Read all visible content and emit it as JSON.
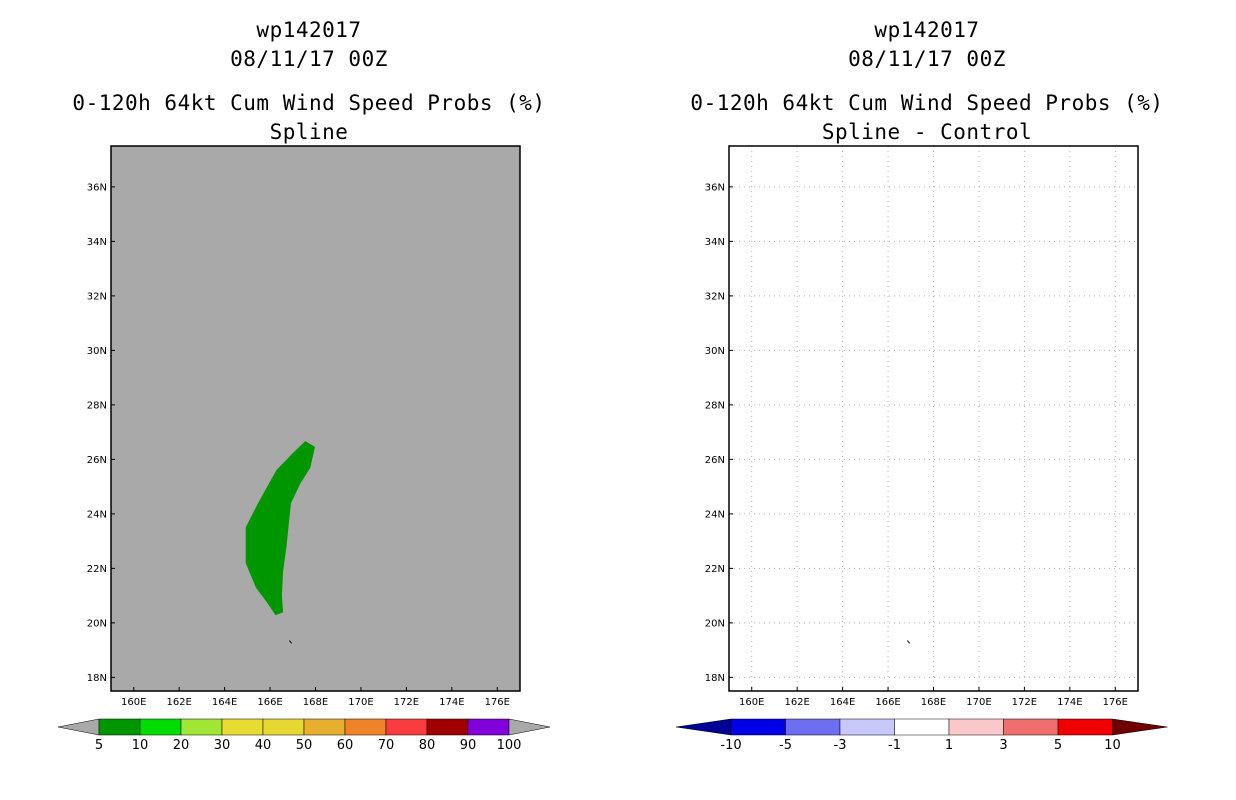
{
  "left": {
    "title_line1": "wp142017",
    "title_line2": "08/11/17 00Z",
    "title_line3": "0-120h 64kt Cum Wind Speed Probs (%)",
    "title_line4": "Spline",
    "background_color": "#a9a9a9",
    "filled_region_color": "#009600",
    "colorbar": {
      "labels": [
        "5",
        "10",
        "20",
        "30",
        "40",
        "50",
        "60",
        "70",
        "80",
        "90",
        "100"
      ],
      "colors": [
        "#009600",
        "#00dc00",
        "#a0e632",
        "#e6dc32",
        "#e6d732",
        "#e6af2d",
        "#f08228",
        "#fa3c3c",
        "#a00000",
        "#8200dc"
      ],
      "end_color": "#a9a9a9"
    }
  },
  "right": {
    "title_line1": "wp142017",
    "title_line2": "08/11/17 00Z",
    "title_line3": "0-120h 64kt Cum Wind Speed Probs (%)",
    "title_line4": "Spline - Control",
    "background_color": "#ffffff",
    "colorbar": {
      "labels": [
        "-10",
        "-5",
        "-3",
        "-1",
        "1",
        "3",
        "5",
        "10"
      ],
      "colors": [
        "#0000e6",
        "#6e6ef0",
        "#c8c8fa",
        "#ffffff",
        "#fac8c8",
        "#f06e6e",
        "#f00000"
      ],
      "low_end_color": "#000096",
      "high_end_color": "#6e0000"
    }
  },
  "axes": {
    "lat_labels": [
      "18N",
      "20N",
      "22N",
      "24N",
      "26N",
      "28N",
      "30N",
      "32N",
      "34N",
      "36N"
    ],
    "lat_values": [
      18,
      20,
      22,
      24,
      26,
      28,
      30,
      32,
      34,
      36
    ],
    "lon_labels": [
      "160E",
      "162E",
      "164E",
      "166E",
      "168E",
      "170E",
      "172E",
      "174E",
      "176E"
    ],
    "lon_values": [
      160,
      162,
      164,
      166,
      168,
      170,
      172,
      174,
      176
    ],
    "lon_range": [
      159,
      177
    ],
    "lat_range": [
      17.5,
      37.5
    ]
  },
  "region_polygon": {
    "points": [
      [
        167.55,
        26.65
      ],
      [
        167.95,
        26.45
      ],
      [
        167.75,
        25.7
      ],
      [
        167.3,
        25.1
      ],
      [
        166.9,
        24.4
      ],
      [
        166.8,
        23.6
      ],
      [
        166.7,
        22.8
      ],
      [
        166.55,
        21.9
      ],
      [
        166.5,
        21.0
      ],
      [
        166.55,
        20.4
      ],
      [
        166.25,
        20.3
      ],
      [
        165.85,
        20.8
      ],
      [
        165.4,
        21.3
      ],
      [
        164.95,
        22.2
      ],
      [
        164.95,
        23.5
      ],
      [
        165.5,
        24.4
      ],
      [
        165.9,
        25.0
      ],
      [
        166.3,
        25.6
      ],
      [
        167.0,
        26.2
      ]
    ]
  },
  "track_marker": {
    "points": [
      [
        166.85,
        19.35
      ],
      [
        166.95,
        19.25
      ]
    ]
  }
}
